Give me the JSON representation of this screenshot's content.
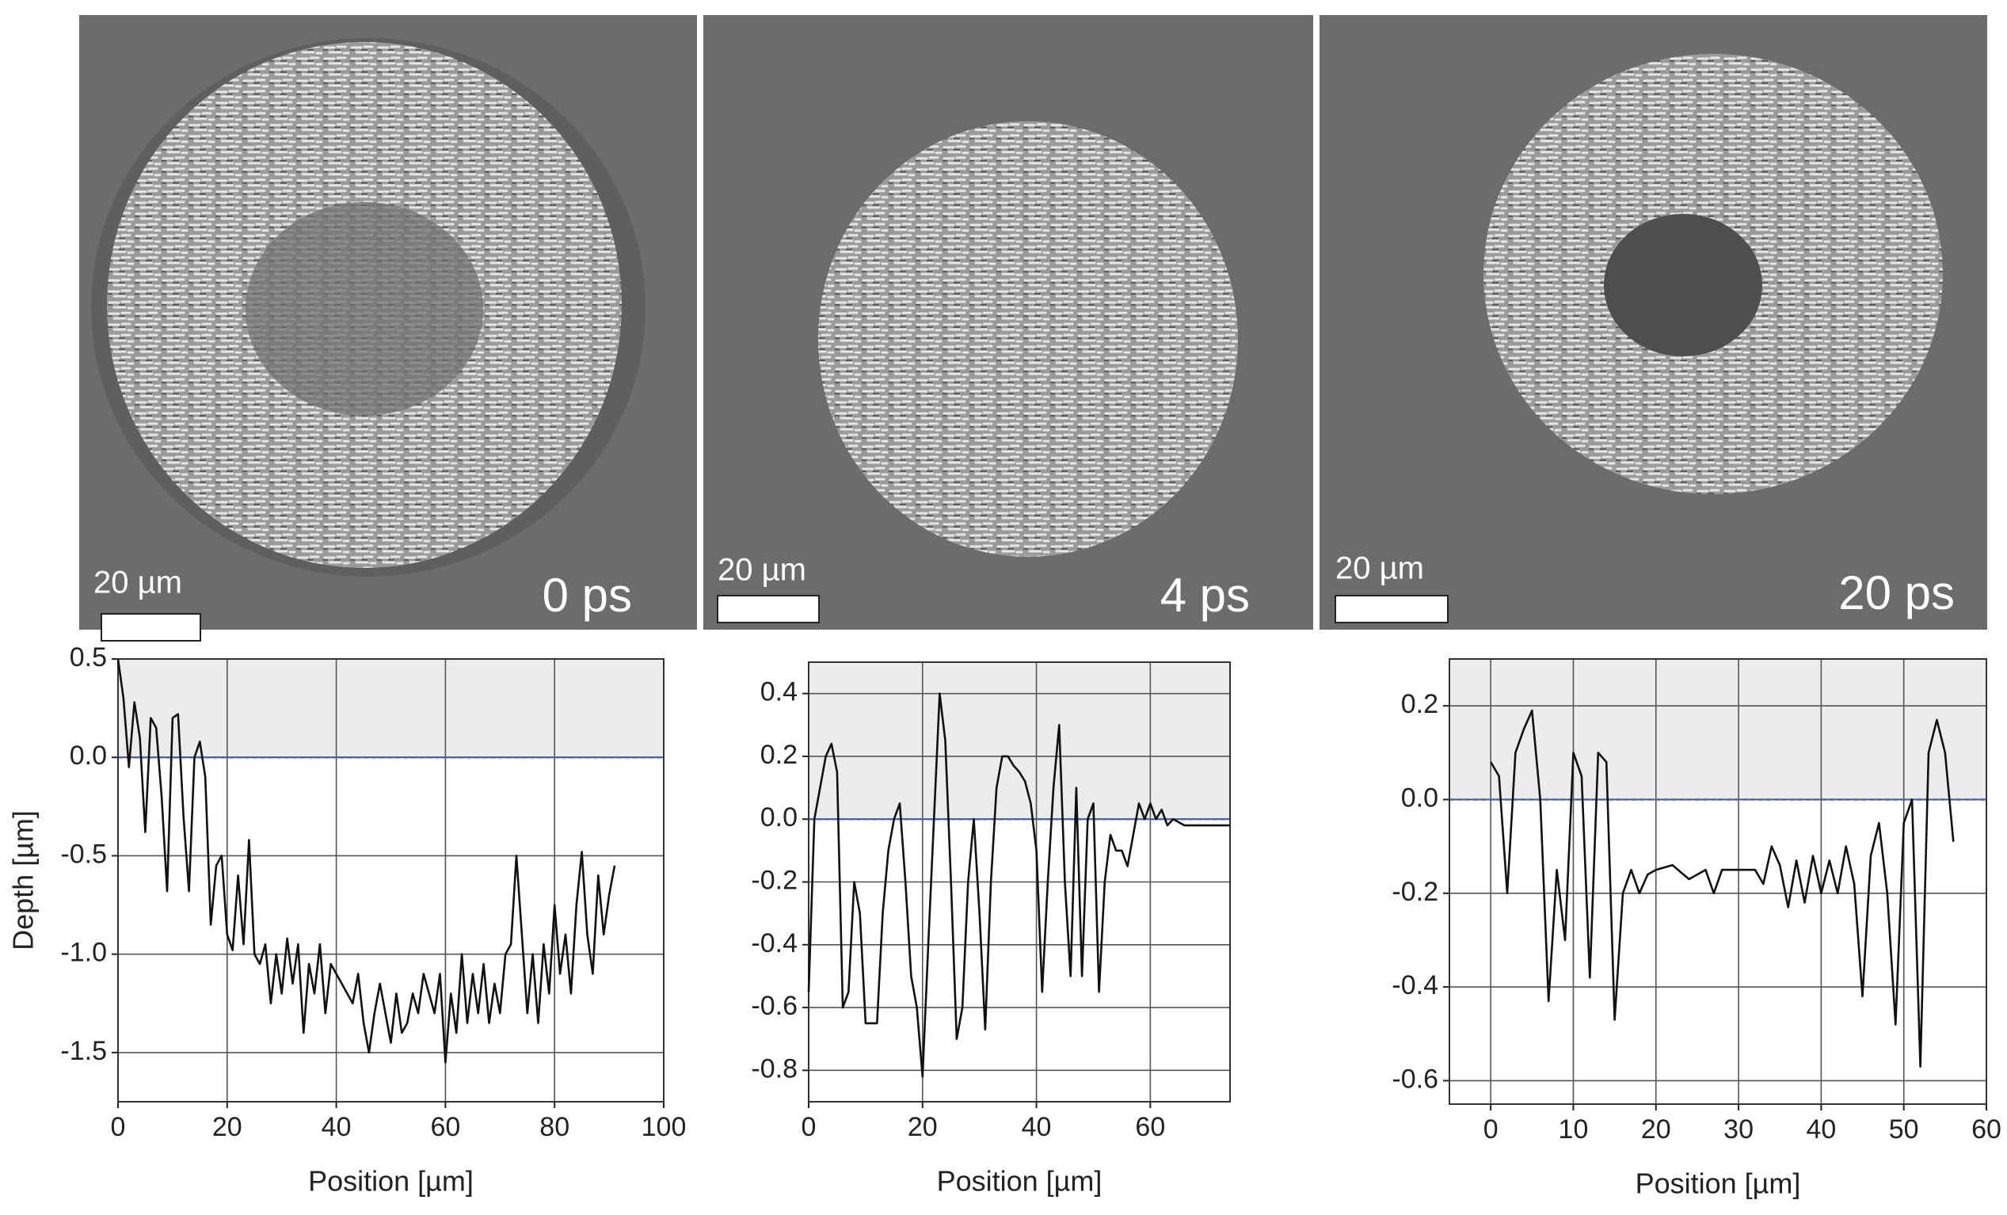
{
  "images": [
    {
      "scale_bar": "20 µm",
      "label": "0 ps"
    },
    {
      "scale_bar": "20 µm",
      "label": "4 ps"
    },
    {
      "scale_bar": "20 µm",
      "label": "20 ps"
    }
  ],
  "chart_data": [
    {
      "type": "line",
      "ylabel": "Depth [µm]",
      "xlabel": "Position [µm]",
      "color": "#111111",
      "grid": true,
      "xlim": [
        0,
        100
      ],
      "ylim": [
        -1.75,
        0.5
      ],
      "xticks": [
        0,
        20,
        40,
        60,
        80,
        100
      ],
      "yticks": [
        0.5,
        {
          "value": 0,
          "label": "0.0"
        },
        -0.5,
        {
          "value": -1,
          "label": "-1.0"
        },
        -1.5
      ],
      "x": [
        0,
        1,
        2,
        3,
        4,
        5,
        6,
        7,
        8,
        9,
        10,
        11,
        12,
        13,
        14,
        15,
        16,
        17,
        18,
        19,
        20,
        21,
        22,
        23,
        24,
        25,
        26,
        27,
        28,
        29,
        30,
        31,
        32,
        33,
        34,
        35,
        36,
        37,
        38,
        39,
        40,
        41,
        42,
        43,
        44,
        45,
        46,
        47,
        48,
        49,
        50,
        51,
        52,
        53,
        54,
        55,
        56,
        57,
        58,
        59,
        60,
        61,
        62,
        63,
        64,
        65,
        66,
        67,
        68,
        69,
        70,
        71,
        72,
        73,
        74,
        75,
        76,
        77,
        78,
        79,
        80,
        81,
        82,
        83,
        84,
        85,
        86,
        87,
        88,
        89,
        90,
        91
      ],
      "values": [
        0.5,
        0.3,
        -0.05,
        0.28,
        0.1,
        -0.38,
        0.2,
        0.15,
        -0.2,
        -0.68,
        0.2,
        0.22,
        -0.3,
        -0.68,
        0.0,
        0.08,
        -0.1,
        -0.85,
        -0.55,
        -0.5,
        -0.9,
        -0.98,
        -0.6,
        -0.95,
        -0.42,
        -1.0,
        -1.05,
        -0.95,
        -1.25,
        -1.0,
        -1.2,
        -0.92,
        -1.15,
        -0.95,
        -1.4,
        -1.05,
        -1.2,
        -0.95,
        -1.3,
        -1.05,
        -1.1,
        -1.15,
        -1.2,
        -1.25,
        -1.1,
        -1.35,
        -1.5,
        -1.3,
        -1.15,
        -1.3,
        -1.45,
        -1.2,
        -1.4,
        -1.35,
        -1.2,
        -1.3,
        -1.1,
        -1.2,
        -1.3,
        -1.1,
        -1.55,
        -1.2,
        -1.4,
        -1.0,
        -1.35,
        -1.1,
        -1.3,
        -1.05,
        -1.35,
        -1.15,
        -1.3,
        -1.0,
        -0.95,
        -0.5,
        -0.9,
        -1.3,
        -1.0,
        -1.35,
        -0.95,
        -1.2,
        -0.75,
        -1.1,
        -0.9,
        -1.2,
        -0.75,
        -0.48,
        -0.9,
        -1.1,
        -0.6,
        -0.9,
        -0.7,
        -0.55
      ]
    },
    {
      "type": "line",
      "xlabel": "Position [µm]",
      "color": "#111111",
      "grid": true,
      "xlim": [
        0,
        74
      ],
      "ylim": [
        -0.9,
        0.5
      ],
      "xticks": [
        0,
        20,
        40,
        60
      ],
      "yticks": [
        0.4,
        0.2,
        {
          "value": 0,
          "label": "0.0"
        },
        -0.2,
        -0.4,
        -0.6,
        -0.8
      ],
      "x": [
        0,
        1,
        2,
        3,
        4,
        5,
        6,
        7,
        8,
        9,
        10,
        11,
        12,
        13,
        14,
        15,
        16,
        17,
        18,
        19,
        20,
        21,
        22,
        23,
        24,
        25,
        26,
        27,
        28,
        29,
        30,
        31,
        32,
        33,
        34,
        35,
        36,
        37,
        38,
        39,
        40,
        41,
        42,
        43,
        44,
        45,
        46,
        47,
        48,
        49,
        50,
        51,
        52,
        53,
        54,
        55,
        56,
        57,
        58,
        59,
        60,
        61,
        62,
        63,
        64,
        66,
        68,
        70,
        72,
        74
      ],
      "values": [
        -0.55,
        0.0,
        0.1,
        0.2,
        0.24,
        0.15,
        -0.6,
        -0.55,
        -0.2,
        -0.3,
        -0.65,
        -0.65,
        -0.65,
        -0.3,
        -0.1,
        0.0,
        0.05,
        -0.2,
        -0.5,
        -0.6,
        -0.82,
        -0.4,
        0.0,
        0.4,
        0.25,
        -0.2,
        -0.7,
        -0.6,
        -0.2,
        0.0,
        -0.3,
        -0.67,
        -0.2,
        0.1,
        0.2,
        0.2,
        0.17,
        0.15,
        0.12,
        0.05,
        -0.1,
        -0.55,
        -0.2,
        0.1,
        0.3,
        -0.2,
        -0.5,
        0.1,
        -0.5,
        0.0,
        0.05,
        -0.55,
        -0.2,
        -0.05,
        -0.1,
        -0.1,
        -0.15,
        -0.05,
        0.05,
        0.0,
        0.05,
        0.0,
        0.03,
        -0.02,
        0.0,
        -0.02,
        -0.02,
        -0.02,
        -0.02,
        -0.02
      ]
    },
    {
      "type": "line",
      "xlabel": "Position [µm]",
      "color": "#111111",
      "grid": true,
      "xlim": [
        -5,
        60
      ],
      "ylim": [
        -0.65,
        0.3
      ],
      "xticks": [
        0,
        10,
        20,
        30,
        40,
        50,
        60
      ],
      "yticks": [
        0.2,
        {
          "value": 0,
          "label": "0.0"
        },
        -0.2,
        -0.4,
        -0.6
      ],
      "x": [
        0,
        1,
        2,
        3,
        4,
        5,
        6,
        7,
        8,
        9,
        10,
        11,
        12,
        13,
        14,
        15,
        16,
        17,
        18,
        19,
        20,
        22,
        24,
        26,
        27,
        28,
        30,
        32,
        33,
        34,
        35,
        36,
        37,
        38,
        39,
        40,
        41,
        42,
        43,
        44,
        45,
        46,
        47,
        48,
        49,
        50,
        51,
        52,
        53,
        54,
        55,
        56
      ],
      "values": [
        0.08,
        0.05,
        -0.2,
        0.1,
        0.15,
        0.19,
        0.0,
        -0.43,
        -0.15,
        -0.3,
        0.1,
        0.05,
        -0.38,
        0.1,
        0.08,
        -0.47,
        -0.2,
        -0.15,
        -0.2,
        -0.16,
        -0.15,
        -0.14,
        -0.17,
        -0.15,
        -0.2,
        -0.15,
        -0.15,
        -0.15,
        -0.18,
        -0.1,
        -0.14,
        -0.23,
        -0.13,
        -0.22,
        -0.12,
        -0.2,
        -0.13,
        -0.2,
        -0.1,
        -0.18,
        -0.42,
        -0.12,
        -0.05,
        -0.2,
        -0.48,
        -0.05,
        0.0,
        -0.57,
        0.1,
        0.17,
        0.1,
        -0.09
      ]
    }
  ]
}
